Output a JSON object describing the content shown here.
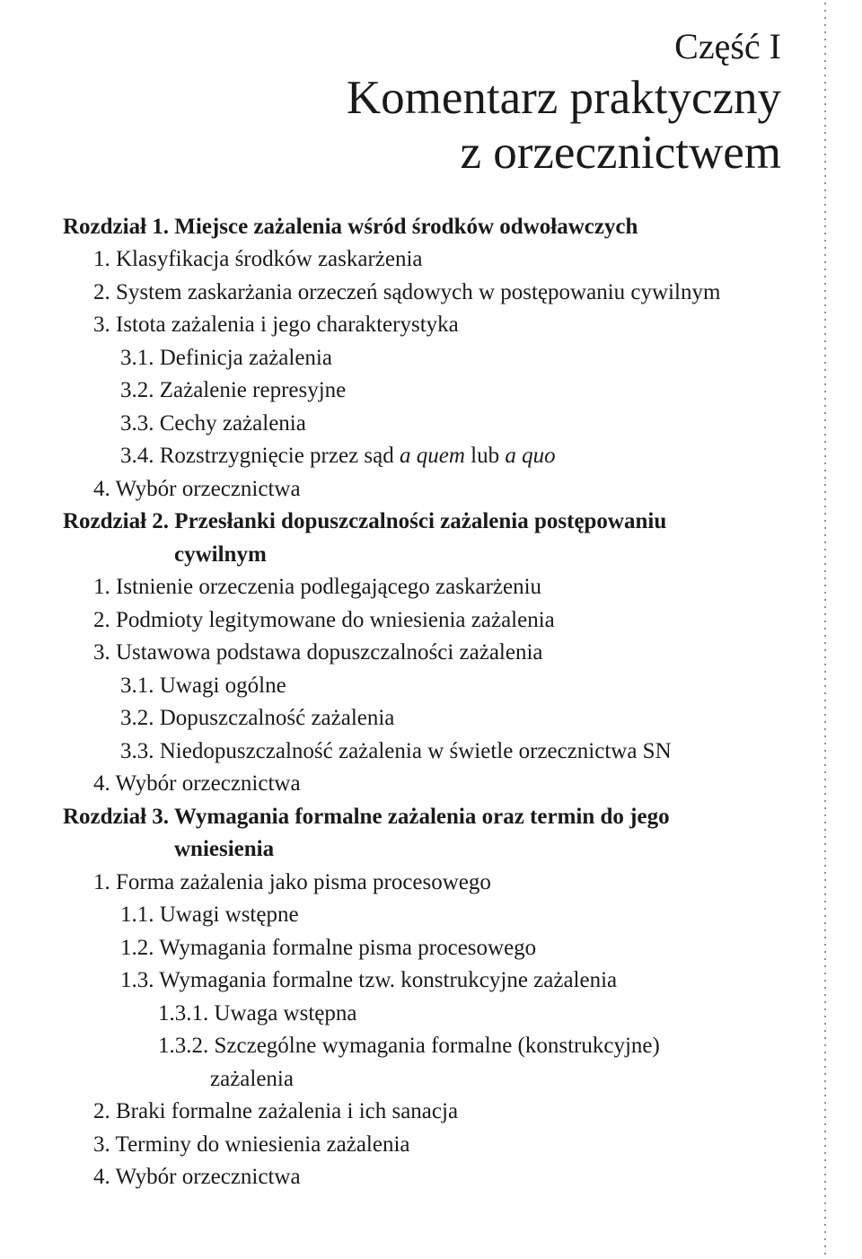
{
  "part": {
    "label": "Część I",
    "title_line1": "Komentarz praktyczny",
    "title_line2": "z orzecznictwem"
  },
  "toc": {
    "ch1": {
      "heading_prefix": "Rozdział 1.",
      "heading_rest": " Miejsce zażalenia wśród środków odwoławczych",
      "i1": "1. Klasyfikacja środków zaskarżenia",
      "i2": "2. System zaskarżania orzeczeń sądowych w postępowaniu cywilnym",
      "i3": "3. Istota zażalenia i jego charakterystyka",
      "i3_1": "3.1. Definicja zażalenia",
      "i3_2": "3.2. Zażalenie represyjne",
      "i3_3": "3.3. Cechy zażalenia",
      "i3_4_pre": "3.4. Rozstrzygnięcie przez sąd ",
      "i3_4_em1": "a quem",
      "i3_4_mid": " lub ",
      "i3_4_em2": "a quo",
      "i4": "4. Wybór orzecznictwa"
    },
    "ch2": {
      "heading_prefix": "Rozdział 2.",
      "heading_rest": " Przesłanki dopuszczalności zażalenia postępowaniu",
      "heading_cont": "cywilnym",
      "i1": "1. Istnienie orzeczenia podlegającego zaskarżeniu",
      "i2": "2. Podmioty legitymowane do wniesienia zażalenia",
      "i3": "3. Ustawowa podstawa dopuszczalności zażalenia",
      "i3_1": "3.1. Uwagi ogólne",
      "i3_2": "3.2. Dopuszczalność zażalenia",
      "i3_3": "3.3. Niedopuszczalność zażalenia w świetle orzecznictwa SN",
      "i4": "4. Wybór orzecznictwa"
    },
    "ch3": {
      "heading_prefix": "Rozdział 3.",
      "heading_rest": " Wymagania formalne zażalenia oraz termin do jego",
      "heading_cont": "wniesienia",
      "i1": "1. Forma zażalenia jako pisma procesowego",
      "i1_1": "1.1. Uwagi wstępne",
      "i1_2": "1.2. Wymagania formalne pisma procesowego",
      "i1_3": "1.3. Wymagania formalne tzw. konstrukcyjne zażalenia",
      "i1_3_1": "1.3.1. Uwaga wstępna",
      "i1_3_2": "1.3.2. Szczególne wymagania formalne (konstrukcyjne)",
      "i1_3_2_cont": "zażalenia",
      "i2": "2. Braki formalne zażalenia i ich sanacja",
      "i3": "3. Terminy do wniesienia zażalenia",
      "i4": "4. Wybór orzecznictwa"
    }
  }
}
